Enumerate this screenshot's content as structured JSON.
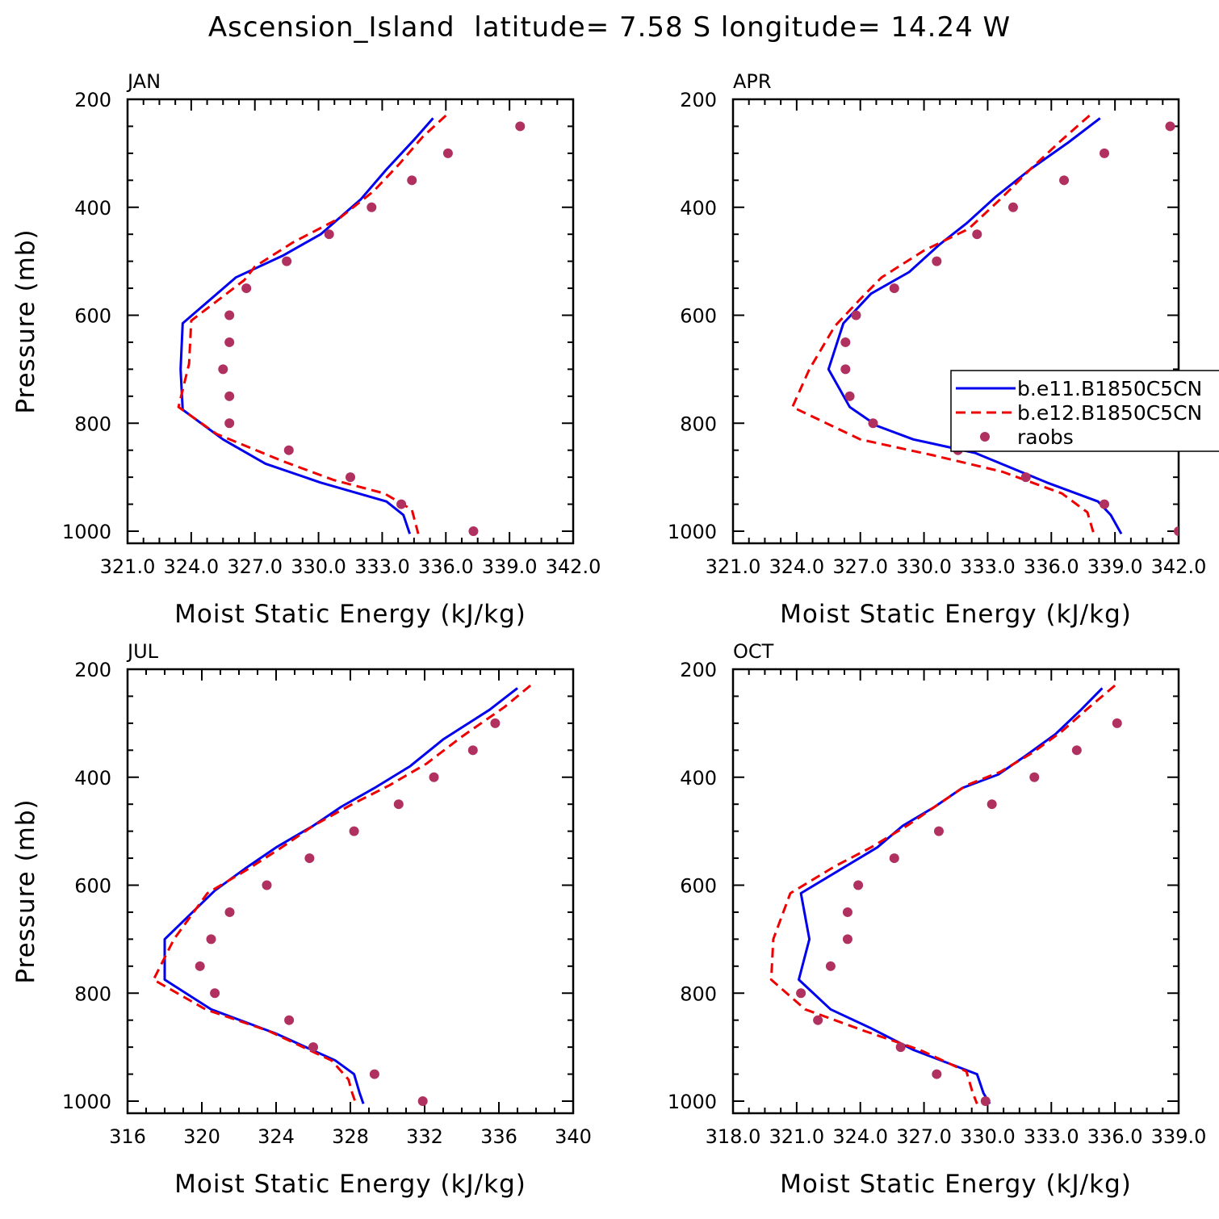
{
  "figure": {
    "title": "Ascension_Island  latitude= 7.58 S longitude= 14.24 W",
    "colors": {
      "b_e11": "#0000ee",
      "b_e12": "#ee0000",
      "raobs": "#b03060",
      "axes": "#000000"
    }
  },
  "chart_data": [
    {
      "type": "line",
      "title": "JAN",
      "xlabel": "Moist Static Energy (kJ/kg)",
      "ylabel": "Pressure (mb)",
      "xlim": [
        321.0,
        342.0
      ],
      "ylim": [
        1000,
        200
      ],
      "y_inverted": true,
      "xticks": [
        321.0,
        324.0,
        327.0,
        330.0,
        333.0,
        336.0,
        339.0,
        342.0
      ],
      "xtick_labels": [
        "321.0",
        "324.0",
        "327.0",
        "330.0",
        "333.0",
        "336.0",
        "339.0",
        "342.0"
      ],
      "yticks": [
        200,
        400,
        600,
        800,
        1000
      ],
      "ytick_labels": [
        "200",
        "400",
        "600",
        "800",
        "1000"
      ],
      "legend": false,
      "series": [
        {
          "name": "b.e11.B1850C5CN",
          "style": "solid",
          "color": "#0000ee",
          "x": [
            335.4,
            334.5,
            333.2,
            332.0,
            330.1,
            328.3,
            326.1,
            323.6,
            323.5,
            323.6,
            325.5,
            327.5,
            330.1,
            333.2,
            334.0,
            334.3
          ],
          "y": [
            235,
            275,
            330,
            385,
            450,
            490,
            530,
            615,
            700,
            775,
            830,
            875,
            910,
            945,
            970,
            1005
          ]
        },
        {
          "name": "b.e12.B1850C5CN",
          "style": "dashed",
          "color": "#ee0000",
          "x": [
            336.0,
            334.9,
            333.8,
            332.6,
            331.0,
            328.8,
            327.0,
            326.5,
            324.0,
            323.9,
            323.4,
            325.2,
            328.3,
            330.7,
            333.1,
            334.4,
            334.7
          ],
          "y": [
            230,
            270,
            320,
            370,
            420,
            465,
            510,
            535,
            610,
            690,
            770,
            820,
            870,
            905,
            930,
            960,
            1005
          ]
        },
        {
          "name": "raobs",
          "style": "markers",
          "color": "#b03060",
          "x": [
            339.5,
            336.1,
            334.4,
            332.5,
            330.5,
            328.5,
            326.6,
            325.8,
            325.8,
            325.5,
            325.8,
            325.8,
            328.6,
            331.5,
            333.9,
            337.3
          ],
          "y": [
            250,
            300,
            350,
            400,
            450,
            500,
            550,
            600,
            650,
            700,
            750,
            800,
            850,
            900,
            950,
            1000
          ]
        }
      ]
    },
    {
      "type": "line",
      "title": "APR",
      "xlabel": "Moist Static Energy (kJ/kg)",
      "ylabel": "",
      "xlim": [
        321.0,
        342.0
      ],
      "ylim": [
        1000,
        200
      ],
      "y_inverted": true,
      "xticks": [
        321.0,
        324.0,
        327.0,
        330.0,
        333.0,
        336.0,
        339.0,
        342.0
      ],
      "xtick_labels": [
        "321.0",
        "324.0",
        "327.0",
        "330.0",
        "333.0",
        "336.0",
        "339.0",
        "342.0"
      ],
      "yticks": [
        200,
        400,
        600,
        800,
        1000
      ],
      "ytick_labels": [
        "200",
        "400",
        "600",
        "800",
        "1000"
      ],
      "legend": true,
      "legend_position": "right",
      "series": [
        {
          "name": "b.e11.B1850C5CN",
          "style": "solid",
          "color": "#0000ee",
          "x": [
            338.3,
            336.8,
            335.0,
            333.4,
            332.0,
            330.7,
            329.3,
            327.5,
            326.2,
            325.5,
            326.5,
            327.8,
            329.5,
            332.4,
            335.8,
            338.2,
            338.8,
            339.3
          ],
          "y": [
            235,
            280,
            330,
            380,
            430,
            470,
            520,
            560,
            615,
            700,
            770,
            805,
            830,
            855,
            910,
            945,
            970,
            1005
          ]
        },
        {
          "name": "b.e12.B1850C5CN",
          "style": "dashed",
          "color": "#ee0000",
          "x": [
            337.8,
            336.5,
            335.0,
            333.6,
            332.1,
            330.0,
            328.0,
            327.0,
            325.8,
            324.6,
            323.8,
            327.0,
            330.5,
            333.7,
            336.5,
            337.7,
            338.0
          ],
          "y": [
            230,
            275,
            330,
            385,
            440,
            480,
            530,
            570,
            620,
            700,
            770,
            830,
            860,
            890,
            930,
            965,
            1005
          ]
        },
        {
          "name": "raobs",
          "style": "markers",
          "color": "#b03060",
          "x": [
            341.6,
            338.5,
            336.6,
            334.2,
            332.5,
            330.6,
            328.6,
            326.8,
            326.3,
            326.3,
            326.5,
            327.6,
            331.6,
            334.8,
            338.5,
            342.0
          ],
          "y": [
            250,
            300,
            350,
            400,
            450,
            500,
            550,
            600,
            650,
            700,
            750,
            800,
            850,
            900,
            950,
            1000
          ]
        }
      ]
    },
    {
      "type": "line",
      "title": "JUL",
      "xlabel": "Moist Static Energy (kJ/kg)",
      "ylabel": "Pressure (mb)",
      "xlim": [
        316,
        340
      ],
      "ylim": [
        1000,
        200
      ],
      "y_inverted": true,
      "xticks": [
        316,
        320,
        324,
        328,
        332,
        336,
        340
      ],
      "xtick_labels": [
        "316",
        "320",
        "324",
        "328",
        "332",
        "336",
        "340"
      ],
      "yticks": [
        200,
        400,
        600,
        800,
        1000
      ],
      "ytick_labels": [
        "200",
        "400",
        "600",
        "800",
        "1000"
      ],
      "legend": false,
      "series": [
        {
          "name": "b.e11.B1850C5CN",
          "style": "solid",
          "color": "#0000ee",
          "x": [
            337.0,
            335.5,
            333.0,
            331.2,
            329.3,
            327.5,
            326.0,
            324.0,
            322.3,
            320.7,
            318.0,
            318.0,
            320.5,
            324.0,
            327.2,
            328.2,
            328.5,
            328.7
          ],
          "y": [
            235,
            275,
            330,
            380,
            420,
            455,
            490,
            530,
            570,
            610,
            700,
            775,
            830,
            875,
            925,
            950,
            985,
            1005
          ]
        },
        {
          "name": "b.e12.B1850C5CN",
          "style": "dashed",
          "color": "#ee0000",
          "x": [
            337.7,
            336.3,
            334.0,
            332.1,
            330.1,
            328.1,
            326.0,
            324.3,
            322.5,
            320.3,
            318.5,
            317.4,
            320.2,
            323.6,
            327.0,
            327.9,
            328.1,
            328.3
          ],
          "y": [
            230,
            270,
            325,
            375,
            415,
            450,
            490,
            530,
            570,
            615,
            700,
            775,
            830,
            870,
            925,
            960,
            985,
            1005
          ]
        },
        {
          "name": "raobs",
          "style": "markers",
          "color": "#b03060",
          "x": [
            335.8,
            334.6,
            332.5,
            330.6,
            328.2,
            325.8,
            323.5,
            321.5,
            320.5,
            319.9,
            320.7,
            324.7,
            326.0,
            329.3,
            331.9
          ],
          "y": [
            300,
            350,
            400,
            450,
            500,
            550,
            600,
            650,
            700,
            750,
            800,
            850,
            900,
            950,
            1000
          ]
        }
      ]
    },
    {
      "type": "line",
      "title": "OCT",
      "xlabel": "Moist Static Energy (kJ/kg)",
      "ylabel": "",
      "xlim": [
        318.0,
        339.0
      ],
      "ylim": [
        1000,
        200
      ],
      "y_inverted": true,
      "xticks": [
        318.0,
        321.0,
        324.0,
        327.0,
        330.0,
        333.0,
        336.0,
        339.0
      ],
      "xtick_labels": [
        "318.0",
        "321.0",
        "324.0",
        "327.0",
        "330.0",
        "333.0",
        "336.0",
        "339.0"
      ],
      "yticks": [
        200,
        400,
        600,
        800,
        1000
      ],
      "ytick_labels": [
        "200",
        "400",
        "600",
        "800",
        "1000"
      ],
      "legend": false,
      "series": [
        {
          "name": "b.e11.B1850C5CN",
          "style": "solid",
          "color": "#0000ee",
          "x": [
            335.4,
            334.4,
            333.2,
            331.8,
            330.5,
            328.8,
            327.5,
            326.0,
            324.8,
            321.2,
            321.6,
            321.1,
            322.6,
            324.5,
            326.5,
            329.5,
            329.8,
            330.1
          ],
          "y": [
            235,
            275,
            320,
            360,
            395,
            420,
            455,
            490,
            530,
            615,
            700,
            775,
            830,
            865,
            905,
            950,
            985,
            1005
          ]
        },
        {
          "name": "b.e12.B1850C5CN",
          "style": "dashed",
          "color": "#ee0000",
          "x": [
            336.0,
            334.8,
            333.5,
            332.1,
            330.6,
            329.0,
            327.5,
            326.2,
            324.5,
            322.8,
            320.7,
            319.9,
            319.8,
            321.4,
            324.2,
            326.8,
            329.0,
            329.3,
            329.5
          ],
          "y": [
            230,
            270,
            315,
            355,
            390,
            415,
            455,
            490,
            530,
            565,
            615,
            700,
            775,
            830,
            870,
            905,
            945,
            985,
            1005
          ]
        },
        {
          "name": "raobs",
          "style": "markers",
          "color": "#b03060",
          "x": [
            336.1,
            334.2,
            332.2,
            330.2,
            327.7,
            325.6,
            323.9,
            323.4,
            323.4,
            322.6,
            321.2,
            322.0,
            325.9,
            327.6,
            329.9
          ],
          "y": [
            300,
            350,
            400,
            450,
            500,
            550,
            600,
            650,
            700,
            750,
            800,
            850,
            900,
            950,
            1000
          ]
        }
      ]
    }
  ]
}
